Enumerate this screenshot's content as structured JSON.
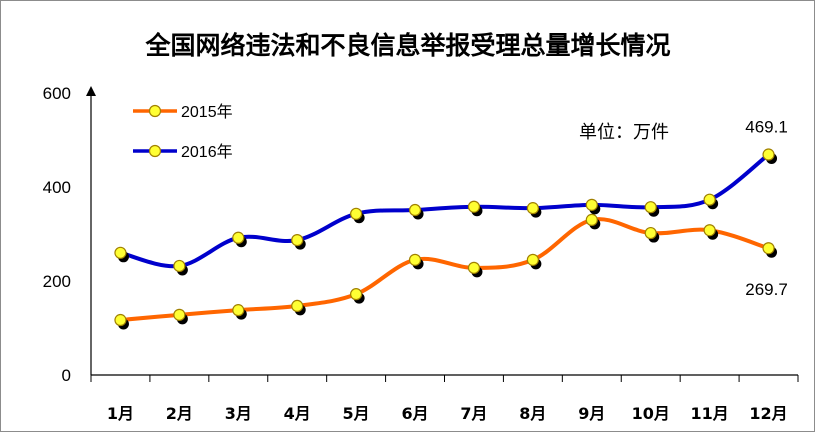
{
  "chart_data": {
    "type": "line",
    "title": "全国网络违法和不良信息举报受理总量增长情况",
    "unit": "单位：万件",
    "categories": [
      "1月",
      "2月",
      "3月",
      "4月",
      "5月",
      "6月",
      "7月",
      "8月",
      "9月",
      "10月",
      "11月",
      "12月"
    ],
    "ylim": [
      0,
      600
    ],
    "yticks": [
      "0",
      "200",
      "400",
      "600"
    ],
    "grid": false,
    "legend_position": "top-left",
    "series": [
      {
        "name": "2015年",
        "color": "#ff6600",
        "values": [
          117,
          128,
          138,
          147,
          172,
          245,
          228,
          245,
          330,
          302,
          308,
          269.7
        ]
      },
      {
        "name": "2016年",
        "color": "#0000cc",
        "values": [
          260,
          232,
          292,
          287,
          343,
          351,
          358,
          355,
          362,
          357,
          373,
          469.1
        ]
      }
    ],
    "annotations": [
      {
        "text": "469.1",
        "series": 1,
        "index": 11
      },
      {
        "text": "269.7",
        "series": 0,
        "index": 11
      }
    ]
  }
}
